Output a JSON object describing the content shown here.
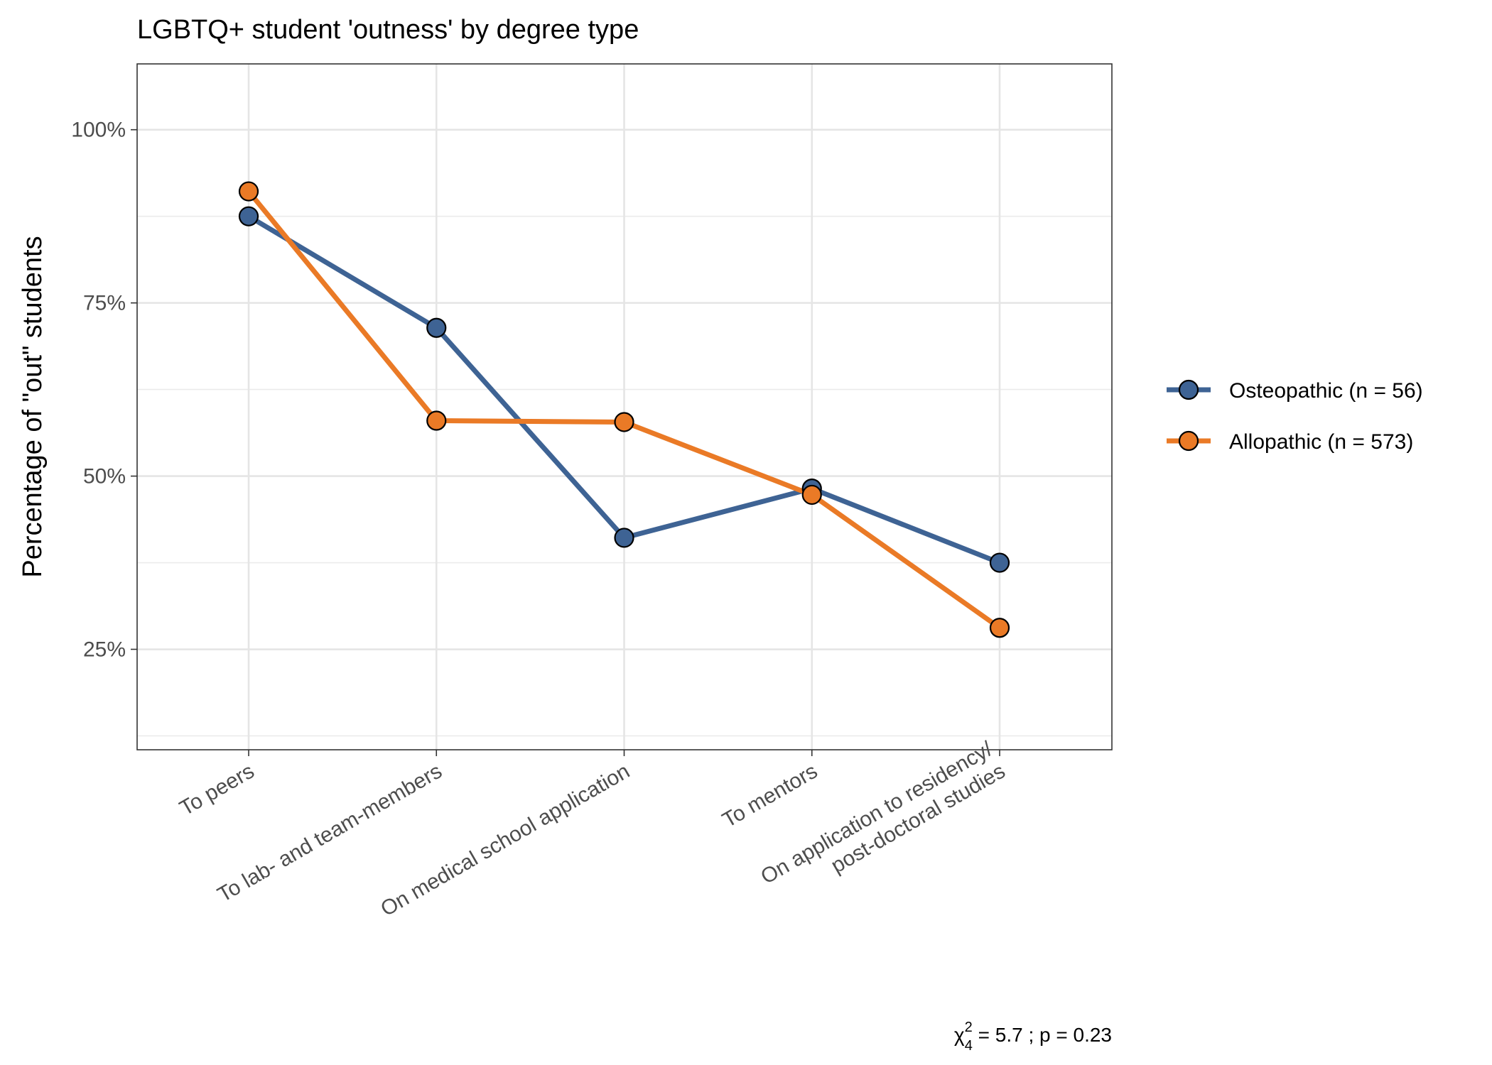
{
  "chart_data": {
    "type": "line",
    "title": "LGBTQ+ student 'outness' by degree type",
    "xlabel": "",
    "ylabel": "Percentage of \"out\" students",
    "categories": [
      "To peers",
      "To lab- and team-members",
      "On medical school application",
      "To mentors",
      "On application to residency/\npost-doctoral studies"
    ],
    "yticks": [
      "25%",
      "50%",
      "75%",
      "100%"
    ],
    "ytick_values": [
      25,
      50,
      75,
      100
    ],
    "ylim": [
      10.5,
      109.5
    ],
    "grid": true,
    "legend_position": "right",
    "series": [
      {
        "name": "Osteopathic (n = 56)",
        "color": "#3e6394",
        "values": [
          87.5,
          71.4,
          41.1,
          48.2,
          37.5
        ]
      },
      {
        "name": "Allopathic (n = 573)",
        "color": "#ea7a26",
        "values": [
          91.1,
          58.0,
          57.8,
          47.3,
          28.1
        ]
      }
    ],
    "annotation": {
      "chi_symbol": "χ",
      "chi_sup": "2",
      "chi_sub": "4",
      "text": " = 5.7 ;  p = 0.23"
    }
  }
}
